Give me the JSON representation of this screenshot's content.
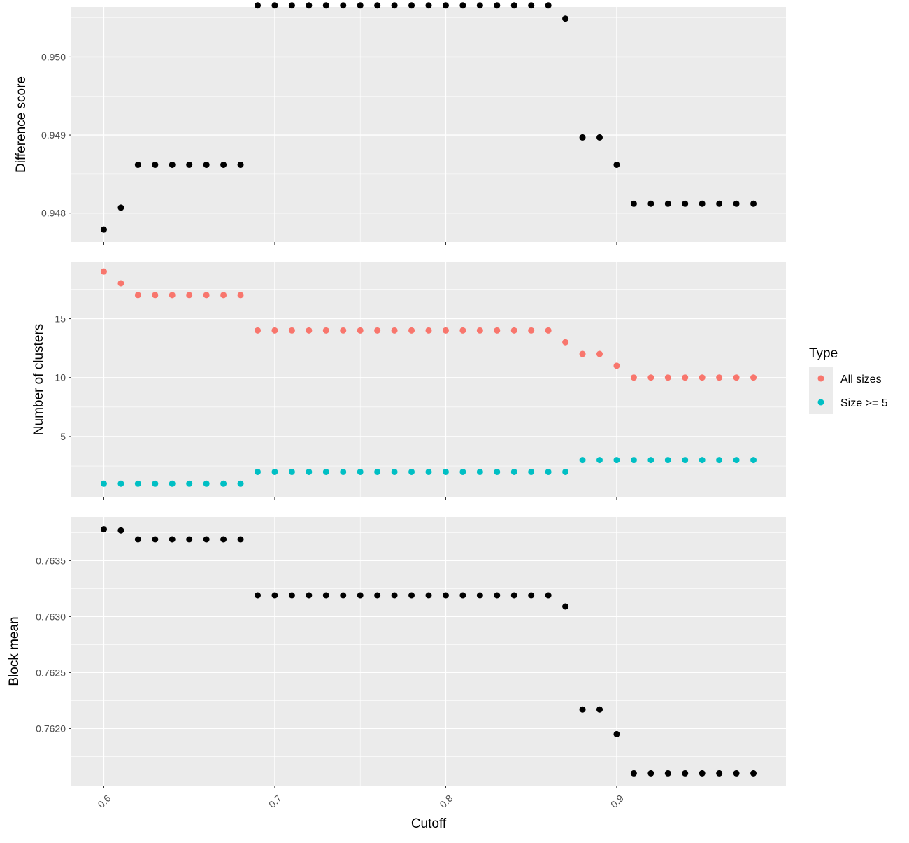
{
  "chart_data": [
    {
      "type": "scatter",
      "id": "difference",
      "ylabel": "Difference score",
      "ylim": [
        0.94763,
        0.95064
      ],
      "yticks": [
        0.948,
        0.949,
        0.95
      ],
      "ytick_labels": [
        "0.948",
        "0.949",
        "0.950"
      ],
      "grid": true,
      "series": [
        {
          "color": "#000000",
          "points": [
            [
              0.6,
              0.94779
            ],
            [
              0.61,
              0.94807
            ],
            [
              0.62,
              0.94862
            ],
            [
              0.63,
              0.94862
            ],
            [
              0.64,
              0.94862
            ],
            [
              0.65,
              0.94862
            ],
            [
              0.66,
              0.94862
            ],
            [
              0.67,
              0.94862
            ],
            [
              0.68,
              0.94862
            ],
            [
              0.69,
              0.95066
            ],
            [
              0.7,
              0.95066
            ],
            [
              0.71,
              0.95066
            ],
            [
              0.72,
              0.95066
            ],
            [
              0.73,
              0.95066
            ],
            [
              0.74,
              0.95066
            ],
            [
              0.75,
              0.95066
            ],
            [
              0.76,
              0.95066
            ],
            [
              0.77,
              0.95066
            ],
            [
              0.78,
              0.95066
            ],
            [
              0.79,
              0.95066
            ],
            [
              0.8,
              0.95066
            ],
            [
              0.81,
              0.95066
            ],
            [
              0.82,
              0.95066
            ],
            [
              0.83,
              0.95066
            ],
            [
              0.84,
              0.95066
            ],
            [
              0.85,
              0.95066
            ],
            [
              0.86,
              0.95066
            ],
            [
              0.87,
              0.95049
            ],
            [
              0.88,
              0.94897
            ],
            [
              0.89,
              0.94897
            ],
            [
              0.9,
              0.94862
            ],
            [
              0.91,
              0.94812
            ],
            [
              0.92,
              0.94812
            ],
            [
              0.93,
              0.94812
            ],
            [
              0.94,
              0.94812
            ],
            [
              0.95,
              0.94812
            ],
            [
              0.96,
              0.94812
            ],
            [
              0.97,
              0.94812
            ],
            [
              0.98,
              0.94812
            ]
          ]
        }
      ]
    },
    {
      "type": "scatter",
      "id": "clusters",
      "ylabel": "Number of clusters",
      "ylim": [
        -0.11,
        19.78
      ],
      "yticks": [
        5,
        10,
        15
      ],
      "ytick_labels": [
        "5",
        "10",
        "15"
      ],
      "grid": true,
      "legend": {
        "title": "Type",
        "position": "right"
      },
      "series": [
        {
          "name": "All sizes",
          "color": "#F8766D",
          "points": [
            [
              0.6,
              19
            ],
            [
              0.61,
              18
            ],
            [
              0.62,
              17
            ],
            [
              0.63,
              17
            ],
            [
              0.64,
              17
            ],
            [
              0.65,
              17
            ],
            [
              0.66,
              17
            ],
            [
              0.67,
              17
            ],
            [
              0.68,
              17
            ],
            [
              0.69,
              14
            ],
            [
              0.7,
              14
            ],
            [
              0.71,
              14
            ],
            [
              0.72,
              14
            ],
            [
              0.73,
              14
            ],
            [
              0.74,
              14
            ],
            [
              0.75,
              14
            ],
            [
              0.76,
              14
            ],
            [
              0.77,
              14
            ],
            [
              0.78,
              14
            ],
            [
              0.79,
              14
            ],
            [
              0.8,
              14
            ],
            [
              0.81,
              14
            ],
            [
              0.82,
              14
            ],
            [
              0.83,
              14
            ],
            [
              0.84,
              14
            ],
            [
              0.85,
              14
            ],
            [
              0.86,
              14
            ],
            [
              0.87,
              13
            ],
            [
              0.88,
              12
            ],
            [
              0.89,
              12
            ],
            [
              0.9,
              11
            ],
            [
              0.91,
              10
            ],
            [
              0.92,
              10
            ],
            [
              0.93,
              10
            ],
            [
              0.94,
              10
            ],
            [
              0.95,
              10
            ],
            [
              0.96,
              10
            ],
            [
              0.97,
              10
            ],
            [
              0.98,
              10
            ]
          ]
        },
        {
          "name": "Size >= 5",
          "color": "#00BFC4",
          "points": [
            [
              0.6,
              1
            ],
            [
              0.61,
              1
            ],
            [
              0.62,
              1
            ],
            [
              0.63,
              1
            ],
            [
              0.64,
              1
            ],
            [
              0.65,
              1
            ],
            [
              0.66,
              1
            ],
            [
              0.67,
              1
            ],
            [
              0.68,
              1
            ],
            [
              0.69,
              2
            ],
            [
              0.7,
              2
            ],
            [
              0.71,
              2
            ],
            [
              0.72,
              2
            ],
            [
              0.73,
              2
            ],
            [
              0.74,
              2
            ],
            [
              0.75,
              2
            ],
            [
              0.76,
              2
            ],
            [
              0.77,
              2
            ],
            [
              0.78,
              2
            ],
            [
              0.79,
              2
            ],
            [
              0.8,
              2
            ],
            [
              0.81,
              2
            ],
            [
              0.82,
              2
            ],
            [
              0.83,
              2
            ],
            [
              0.84,
              2
            ],
            [
              0.85,
              2
            ],
            [
              0.86,
              2
            ],
            [
              0.87,
              2
            ],
            [
              0.88,
              3
            ],
            [
              0.89,
              3
            ],
            [
              0.9,
              3
            ],
            [
              0.91,
              3
            ],
            [
              0.92,
              3
            ],
            [
              0.93,
              3
            ],
            [
              0.94,
              3
            ],
            [
              0.95,
              3
            ],
            [
              0.96,
              3
            ],
            [
              0.97,
              3
            ],
            [
              0.98,
              3
            ]
          ]
        }
      ]
    },
    {
      "type": "scatter",
      "id": "block-mean",
      "ylabel": "Block mean",
      "xlabel": "Cutoff",
      "ylim": [
        0.76149,
        0.76389
      ],
      "yticks": [
        0.762,
        0.7625,
        0.763,
        0.7635
      ],
      "ytick_labels": [
        "0.7620",
        "0.7625",
        "0.7630",
        "0.7635"
      ],
      "xlim": [
        0.581,
        0.999
      ],
      "xticks": [
        0.6,
        0.7,
        0.8,
        0.9
      ],
      "xtick_labels": [
        "0.6",
        "0.7",
        "0.8",
        "0.9"
      ],
      "grid": true,
      "series": [
        {
          "color": "#000000",
          "points": [
            [
              0.6,
              0.76378
            ],
            [
              0.61,
              0.76377
            ],
            [
              0.62,
              0.76369
            ],
            [
              0.63,
              0.76369
            ],
            [
              0.64,
              0.76369
            ],
            [
              0.65,
              0.76369
            ],
            [
              0.66,
              0.76369
            ],
            [
              0.67,
              0.76369
            ],
            [
              0.68,
              0.76369
            ],
            [
              0.69,
              0.76319
            ],
            [
              0.7,
              0.76319
            ],
            [
              0.71,
              0.76319
            ],
            [
              0.72,
              0.76319
            ],
            [
              0.73,
              0.76319
            ],
            [
              0.74,
              0.76319
            ],
            [
              0.75,
              0.76319
            ],
            [
              0.76,
              0.76319
            ],
            [
              0.77,
              0.76319
            ],
            [
              0.78,
              0.76319
            ],
            [
              0.79,
              0.76319
            ],
            [
              0.8,
              0.76319
            ],
            [
              0.81,
              0.76319
            ],
            [
              0.82,
              0.76319
            ],
            [
              0.83,
              0.76319
            ],
            [
              0.84,
              0.76319
            ],
            [
              0.85,
              0.76319
            ],
            [
              0.86,
              0.76319
            ],
            [
              0.87,
              0.76309
            ],
            [
              0.88,
              0.76217
            ],
            [
              0.89,
              0.76217
            ],
            [
              0.9,
              0.76195
            ],
            [
              0.91,
              0.7616
            ],
            [
              0.92,
              0.7616
            ],
            [
              0.93,
              0.7616
            ],
            [
              0.94,
              0.7616
            ],
            [
              0.95,
              0.7616
            ],
            [
              0.96,
              0.7616
            ],
            [
              0.97,
              0.7616
            ],
            [
              0.98,
              0.7616
            ]
          ]
        }
      ]
    }
  ]
}
